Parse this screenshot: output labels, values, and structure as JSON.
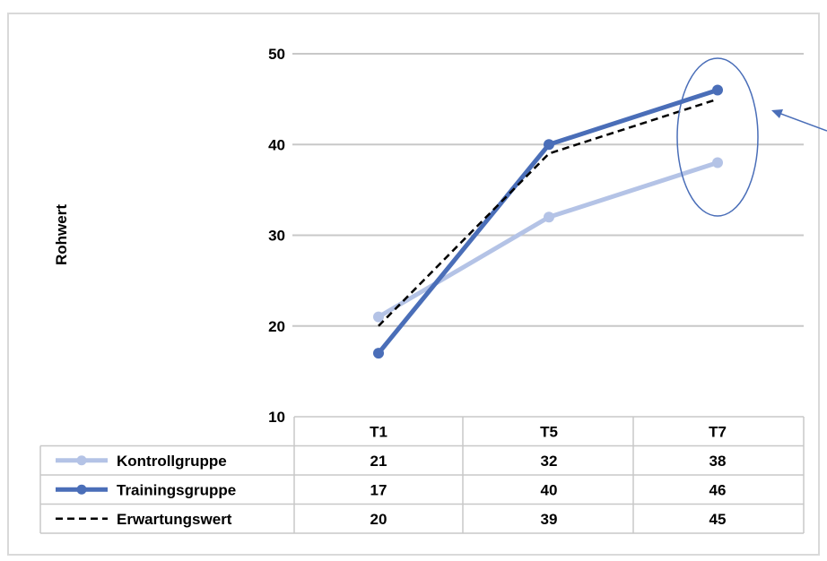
{
  "chart_data": {
    "type": "line",
    "ylabel": "Rohwert",
    "categories": [
      "T1",
      "T5",
      "T7"
    ],
    "ylim": [
      10,
      50
    ],
    "yticks": [
      10,
      20,
      30,
      40,
      50
    ],
    "grid": true,
    "legend": "data-table-below",
    "series": [
      {
        "name": "Kontrollgruppe",
        "values": [
          21,
          32,
          38
        ],
        "color": "#b4c3e6",
        "style": "solid-marker"
      },
      {
        "name": "Trainingsgruppe",
        "values": [
          17,
          40,
          46
        ],
        "color": "#4a6eb8",
        "style": "solid-marker"
      },
      {
        "name": "Erwartungswert",
        "values": [
          20,
          39,
          45
        ],
        "color": "#000000",
        "style": "dashed"
      }
    ],
    "annotation": {
      "shape": "ellipse-with-arrow",
      "target": "T7",
      "color": "#4a6eb8"
    }
  }
}
